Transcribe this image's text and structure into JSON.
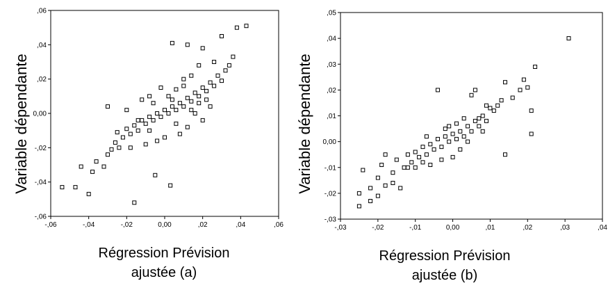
{
  "chart_data": [
    {
      "type": "scatter",
      "xlabel_lines": [
        "Régression Prévision",
        "ajustée (a)"
      ],
      "ylabel": "Variable dépendante",
      "xlim": [
        -0.06,
        0.06
      ],
      "ylim": [
        -0.06,
        0.06
      ],
      "x_ticks": [
        -0.06,
        -0.04,
        -0.02,
        0.0,
        0.02,
        0.04,
        0.06
      ],
      "y_ticks": [
        -0.06,
        -0.04,
        -0.02,
        0.0,
        0.02,
        0.04,
        0.06
      ],
      "x_tick_labels": [
        "-,06",
        "-,04",
        "-,02",
        "0,00",
        ",02",
        ",04",
        ",06"
      ],
      "y_tick_labels": [
        "-,06",
        "-,04",
        "-,02",
        "0,00",
        ",02",
        ",04",
        ",06"
      ],
      "marker": "hollow-square",
      "grid": false,
      "points": [
        [
          -0.054,
          -0.043
        ],
        [
          -0.047,
          -0.043
        ],
        [
          -0.04,
          -0.047
        ],
        [
          -0.044,
          -0.031
        ],
        [
          -0.038,
          -0.034
        ],
        [
          -0.036,
          -0.028
        ],
        [
          -0.032,
          -0.031
        ],
        [
          -0.03,
          -0.024
        ],
        [
          -0.028,
          -0.021
        ],
        [
          -0.026,
          -0.017
        ],
        [
          -0.024,
          -0.02
        ],
        [
          -0.022,
          -0.014
        ],
        [
          -0.025,
          -0.011
        ],
        [
          -0.02,
          -0.009
        ],
        [
          -0.018,
          -0.012
        ],
        [
          -0.016,
          -0.007
        ],
        [
          -0.014,
          -0.01
        ],
        [
          -0.012,
          -0.004
        ],
        [
          -0.01,
          -0.006
        ],
        [
          -0.008,
          -0.002
        ],
        [
          -0.006,
          -0.004
        ],
        [
          -0.004,
          0.0
        ],
        [
          -0.002,
          -0.002
        ],
        [
          0.0,
          0.002
        ],
        [
          0.002,
          0.0
        ],
        [
          0.004,
          0.004
        ],
        [
          0.006,
          0.002
        ],
        [
          0.008,
          0.006
        ],
        [
          0.01,
          0.004
        ],
        [
          0.012,
          0.009
        ],
        [
          0.014,
          0.007
        ],
        [
          0.016,
          0.012
        ],
        [
          0.018,
          0.01
        ],
        [
          0.02,
          0.015
        ],
        [
          0.022,
          0.013
        ],
        [
          0.024,
          0.018
        ],
        [
          0.026,
          0.016
        ],
        [
          0.028,
          0.022
        ],
        [
          0.03,
          0.019
        ],
        [
          0.032,
          0.025
        ],
        [
          -0.03,
          0.004
        ],
        [
          -0.016,
          -0.052
        ],
        [
          -0.005,
          -0.036
        ],
        [
          0.003,
          -0.042
        ],
        [
          0.004,
          0.041
        ],
        [
          0.012,
          0.04
        ],
        [
          0.02,
          0.038
        ],
        [
          0.03,
          0.045
        ],
        [
          0.038,
          0.05
        ],
        [
          0.043,
          0.051
        ],
        [
          0.036,
          0.033
        ],
        [
          0.034,
          0.028
        ],
        [
          0.026,
          0.03
        ],
        [
          0.018,
          0.028
        ],
        [
          0.014,
          0.022
        ],
        [
          0.01,
          0.02
        ],
        [
          -0.002,
          0.015
        ],
        [
          -0.008,
          0.01
        ],
        [
          -0.012,
          0.008
        ],
        [
          -0.02,
          0.002
        ],
        [
          0.008,
          -0.012
        ],
        [
          0.012,
          -0.008
        ],
        [
          0.02,
          -0.004
        ],
        [
          0.0,
          -0.014
        ],
        [
          -0.004,
          -0.016
        ],
        [
          0.016,
          0.0
        ],
        [
          0.024,
          0.004
        ],
        [
          0.006,
          -0.006
        ],
        [
          -0.01,
          -0.018
        ],
        [
          -0.018,
          -0.02
        ],
        [
          0.002,
          0.01
        ],
        [
          0.006,
          0.014
        ],
        [
          -0.006,
          0.006
        ],
        [
          0.01,
          0.016
        ],
        [
          0.004,
          0.008
        ],
        [
          -0.008,
          -0.01
        ],
        [
          -0.014,
          -0.004
        ],
        [
          0.014,
          0.002
        ],
        [
          0.018,
          0.006
        ],
        [
          0.022,
          0.008
        ]
      ]
    },
    {
      "type": "scatter",
      "xlabel_lines": [
        "Régression Prévision",
        "ajustée (b)"
      ],
      "ylabel": "Variable dépendante",
      "xlim": [
        -0.03,
        0.04
      ],
      "ylim": [
        -0.03,
        0.05
      ],
      "x_ticks": [
        -0.03,
        -0.02,
        -0.01,
        0.0,
        0.01,
        0.02,
        0.03,
        0.04
      ],
      "y_ticks": [
        -0.03,
        -0.02,
        -0.01,
        0.0,
        0.01,
        0.02,
        0.03,
        0.04,
        0.05
      ],
      "x_tick_labels": [
        "-,03",
        "-,02",
        "-,01",
        "0,00",
        ",01",
        ",02",
        ",03",
        ",04"
      ],
      "y_tick_labels": [
        "-,03",
        "-,02",
        "-,01",
        "0,00",
        ",01",
        ",02",
        ",03",
        ",04",
        ",05"
      ],
      "marker": "hollow-square",
      "grid": false,
      "points": [
        [
          -0.025,
          -0.025
        ],
        [
          -0.025,
          -0.02
        ],
        [
          -0.024,
          -0.011
        ],
        [
          -0.022,
          -0.018
        ],
        [
          -0.02,
          -0.014
        ],
        [
          -0.019,
          -0.009
        ],
        [
          -0.018,
          -0.017
        ],
        [
          -0.016,
          -0.012
        ],
        [
          -0.015,
          -0.007
        ],
        [
          -0.014,
          -0.018
        ],
        [
          -0.013,
          -0.01
        ],
        [
          -0.012,
          -0.005
        ],
        [
          -0.011,
          -0.008
        ],
        [
          -0.01,
          -0.004
        ],
        [
          -0.009,
          -0.006
        ],
        [
          -0.008,
          -0.002
        ],
        [
          -0.007,
          -0.005
        ],
        [
          -0.006,
          -0.001
        ],
        [
          -0.005,
          -0.003
        ],
        [
          -0.004,
          0.001
        ],
        [
          -0.003,
          -0.002
        ],
        [
          -0.002,
          0.002
        ],
        [
          -0.001,
          0.0
        ],
        [
          0.0,
          0.003
        ],
        [
          0.001,
          0.001
        ],
        [
          0.002,
          0.004
        ],
        [
          0.003,
          0.002
        ],
        [
          0.004,
          0.006
        ],
        [
          0.005,
          0.004
        ],
        [
          0.006,
          0.008
        ],
        [
          0.007,
          0.006
        ],
        [
          0.008,
          0.01
        ],
        [
          0.009,
          0.008
        ],
        [
          0.01,
          0.013
        ],
        [
          0.011,
          0.012
        ],
        [
          0.012,
          0.014
        ],
        [
          0.013,
          0.016
        ],
        [
          0.014,
          0.023
        ],
        [
          0.016,
          0.017
        ],
        [
          0.018,
          0.02
        ],
        [
          0.019,
          0.024
        ],
        [
          0.02,
          0.021
        ],
        [
          0.021,
          0.012
        ],
        [
          0.021,
          0.003
        ],
        [
          0.022,
          0.029
        ],
        [
          0.031,
          0.04
        ],
        [
          0.014,
          -0.005
        ],
        [
          -0.004,
          0.02
        ],
        [
          0.005,
          0.018
        ],
        [
          0.006,
          0.02
        ],
        [
          -0.002,
          0.005
        ],
        [
          -0.006,
          -0.009
        ],
        [
          -0.003,
          -0.007
        ],
        [
          0.002,
          -0.003
        ],
        [
          0.004,
          0.0
        ],
        [
          0.007,
          0.009
        ],
        [
          0.009,
          0.014
        ],
        [
          0.003,
          0.009
        ],
        [
          -0.001,
          0.006
        ],
        [
          -0.007,
          0.002
        ],
        [
          -0.008,
          -0.008
        ],
        [
          -0.01,
          -0.01
        ],
        [
          -0.012,
          -0.01
        ],
        [
          -0.016,
          -0.016
        ],
        [
          -0.02,
          -0.021
        ],
        [
          -0.022,
          -0.023
        ],
        [
          -0.018,
          -0.005
        ],
        [
          0.0,
          -0.006
        ],
        [
          0.001,
          0.007
        ],
        [
          0.008,
          0.004
        ]
      ]
    }
  ]
}
